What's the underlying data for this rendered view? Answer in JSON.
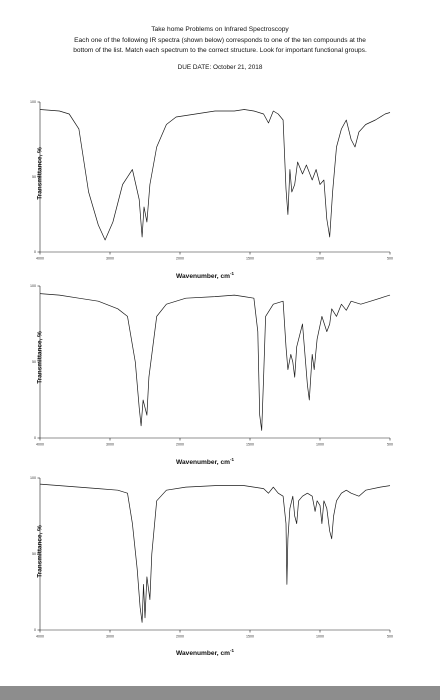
{
  "header": {
    "title": "Take home Problems on Infrared Spectroscopy",
    "line1": "Each one of the following IR spectra (shown below) corresponds to one of the ten compounds at the",
    "line2": "bottom of the list.  Match each spectrum to the correct structure.  Look for important functional groups.",
    "due": "DUE DATE: October 21, 2018"
  },
  "spectra": [
    {
      "ylabel": "Transmittance, %",
      "xlabel": "Wavenumber, cm",
      "xunit_sup": "-1"
    },
    {
      "ylabel": "Transmittance, %",
      "xlabel": "Wavenumber, cm",
      "xunit_sup": "-1"
    },
    {
      "ylabel": "Transmittance, %",
      "xlabel": "Wavenumber, cm",
      "xunit_sup": "-1"
    }
  ],
  "chart_data": [
    {
      "type": "line",
      "xlabel": "Wavenumber, cm-1",
      "ylabel": "Transmittance, %",
      "xlim": [
        4000,
        400
      ],
      "ylim": [
        0,
        100
      ],
      "x_ticks": [
        "4000",
        "3000",
        "2000",
        "1500",
        "1000",
        "500"
      ],
      "y_ticks": [
        "100",
        "50",
        "0"
      ],
      "series": [
        {
          "points": [
            [
              4000,
              95
            ],
            [
              3800,
              94
            ],
            [
              3700,
              92
            ],
            [
              3600,
              82
            ],
            [
              3500,
              40
            ],
            [
              3400,
              18
            ],
            [
              3330,
              8
            ],
            [
              3250,
              20
            ],
            [
              3150,
              45
            ],
            [
              3050,
              55
            ],
            [
              2980,
              35
            ],
            [
              2950,
              10
            ],
            [
              2930,
              30
            ],
            [
              2900,
              20
            ],
            [
              2870,
              45
            ],
            [
              2800,
              70
            ],
            [
              2700,
              85
            ],
            [
              2600,
              90
            ],
            [
              2400,
              92
            ],
            [
              2200,
              94
            ],
            [
              2000,
              94
            ],
            [
              1900,
              95
            ],
            [
              1800,
              94
            ],
            [
              1700,
              92
            ],
            [
              1650,
              86
            ],
            [
              1600,
              94
            ],
            [
              1550,
              92
            ],
            [
              1500,
              88
            ],
            [
              1470,
              42
            ],
            [
              1450,
              25
            ],
            [
              1430,
              55
            ],
            [
              1410,
              40
            ],
            [
              1380,
              45
            ],
            [
              1350,
              60
            ],
            [
              1300,
              52
            ],
            [
              1260,
              58
            ],
            [
              1200,
              48
            ],
            [
              1160,
              55
            ],
            [
              1120,
              45
            ],
            [
              1080,
              48
            ],
            [
              1050,
              22
            ],
            [
              1020,
              10
            ],
            [
              990,
              40
            ],
            [
              950,
              70
            ],
            [
              900,
              82
            ],
            [
              850,
              88
            ],
            [
              800,
              75
            ],
            [
              760,
              70
            ],
            [
              720,
              80
            ],
            [
              650,
              85
            ],
            [
              550,
              88
            ],
            [
              450,
              92
            ],
            [
              400,
              93
            ]
          ]
        }
      ]
    },
    {
      "type": "line",
      "xlabel": "Wavenumber, cm-1",
      "ylabel": "Transmittance, %",
      "xlim": [
        4000,
        400
      ],
      "ylim": [
        0,
        100
      ],
      "x_ticks": [
        "4000",
        "3000",
        "2000",
        "1500",
        "1000",
        "500"
      ],
      "y_ticks": [
        "100",
        "50",
        "0"
      ],
      "series": [
        {
          "points": [
            [
              4000,
              95
            ],
            [
              3800,
              94
            ],
            [
              3600,
              92
            ],
            [
              3400,
              90
            ],
            [
              3200,
              85
            ],
            [
              3100,
              80
            ],
            [
              3020,
              50
            ],
            [
              2980,
              20
            ],
            [
              2960,
              8
            ],
            [
              2940,
              25
            ],
            [
              2900,
              15
            ],
            [
              2880,
              40
            ],
            [
              2800,
              80
            ],
            [
              2700,
              88
            ],
            [
              2500,
              92
            ],
            [
              2200,
              93
            ],
            [
              2000,
              94
            ],
            [
              1900,
              93
            ],
            [
              1800,
              92
            ],
            [
              1760,
              70
            ],
            [
              1740,
              15
            ],
            [
              1720,
              5
            ],
            [
              1700,
              40
            ],
            [
              1680,
              80
            ],
            [
              1600,
              88
            ],
            [
              1500,
              90
            ],
            [
              1470,
              60
            ],
            [
              1450,
              45
            ],
            [
              1420,
              55
            ],
            [
              1400,
              50
            ],
            [
              1380,
              40
            ],
            [
              1360,
              60
            ],
            [
              1300,
              75
            ],
            [
              1250,
              35
            ],
            [
              1230,
              25
            ],
            [
              1200,
              55
            ],
            [
              1180,
              45
            ],
            [
              1150,
              65
            ],
            [
              1100,
              80
            ],
            [
              1050,
              70
            ],
            [
              1020,
              75
            ],
            [
              1000,
              85
            ],
            [
              950,
              80
            ],
            [
              900,
              88
            ],
            [
              850,
              84
            ],
            [
              800,
              90
            ],
            [
              700,
              88
            ],
            [
              600,
              90
            ],
            [
              450,
              93
            ],
            [
              400,
              94
            ]
          ]
        }
      ]
    },
    {
      "type": "line",
      "xlabel": "Wavenumber, cm-1",
      "ylabel": "Transmittance, %",
      "xlim": [
        4000,
        400
      ],
      "ylim": [
        0,
        100
      ],
      "x_ticks": [
        "4000",
        "3000",
        "2000",
        "1500",
        "1000",
        "500"
      ],
      "y_ticks": [
        "100",
        "50",
        "0"
      ],
      "series": [
        {
          "points": [
            [
              4000,
              96
            ],
            [
              3800,
              95
            ],
            [
              3600,
              94
            ],
            [
              3400,
              93
            ],
            [
              3200,
              92
            ],
            [
              3100,
              90
            ],
            [
              3050,
              70
            ],
            [
              3000,
              40
            ],
            [
              2970,
              15
            ],
            [
              2950,
              5
            ],
            [
              2935,
              30
            ],
            [
              2920,
              8
            ],
            [
              2900,
              35
            ],
            [
              2870,
              20
            ],
            [
              2850,
              50
            ],
            [
              2800,
              85
            ],
            [
              2700,
              92
            ],
            [
              2500,
              94
            ],
            [
              2200,
              95
            ],
            [
              2000,
              95
            ],
            [
              1900,
              95
            ],
            [
              1800,
              94
            ],
            [
              1700,
              93
            ],
            [
              1650,
              90
            ],
            [
              1600,
              94
            ],
            [
              1550,
              90
            ],
            [
              1500,
              88
            ],
            [
              1470,
              70
            ],
            [
              1460,
              30
            ],
            [
              1450,
              60
            ],
            [
              1430,
              80
            ],
            [
              1400,
              88
            ],
            [
              1380,
              75
            ],
            [
              1360,
              70
            ],
            [
              1340,
              85
            ],
            [
              1300,
              88
            ],
            [
              1250,
              90
            ],
            [
              1200,
              88
            ],
            [
              1170,
              78
            ],
            [
              1150,
              85
            ],
            [
              1120,
              82
            ],
            [
              1100,
              70
            ],
            [
              1080,
              85
            ],
            [
              1050,
              80
            ],
            [
              1020,
              65
            ],
            [
              1000,
              60
            ],
            [
              980,
              75
            ],
            [
              950,
              85
            ],
            [
              900,
              90
            ],
            [
              850,
              92
            ],
            [
              800,
              90
            ],
            [
              720,
              88
            ],
            [
              650,
              92
            ],
            [
              500,
              94
            ],
            [
              400,
              95
            ]
          ]
        }
      ]
    }
  ]
}
